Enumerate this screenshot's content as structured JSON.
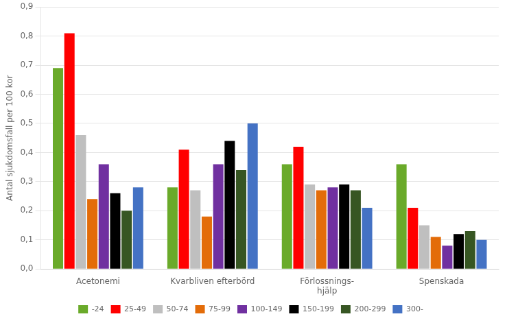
{
  "chart_data": {
    "type": "bar",
    "categories": [
      "Acetonemi",
      "Kvarbliven efterbörd",
      "Förlossnings-\nhjälp",
      "Spenskada"
    ],
    "series": [
      {
        "name": "-24",
        "color": "#6aaa2a",
        "values": [
          0.69,
          0.28,
          0.36,
          0.36
        ]
      },
      {
        "name": "25-49",
        "color": "#ff0000",
        "values": [
          0.81,
          0.41,
          0.42,
          0.21
        ]
      },
      {
        "name": "50-74",
        "color": "#bfbfbf",
        "values": [
          0.46,
          0.27,
          0.29,
          0.15
        ]
      },
      {
        "name": "75-99",
        "color": "#e36c09",
        "values": [
          0.24,
          0.18,
          0.27,
          0.11
        ]
      },
      {
        "name": "100-149",
        "color": "#7030a0",
        "values": [
          0.36,
          0.36,
          0.28,
          0.08
        ]
      },
      {
        "name": "150-199",
        "color": "#000000",
        "values": [
          0.26,
          0.44,
          0.29,
          0.12
        ]
      },
      {
        "name": "200-299",
        "color": "#375623",
        "values": [
          0.2,
          0.34,
          0.27,
          0.13
        ]
      },
      {
        "name": "300-",
        "color": "#4472c4",
        "values": [
          0.28,
          0.5,
          0.21,
          0.1
        ]
      }
    ],
    "ylabel": "Antal sjukdomsfall per 100 kor",
    "ylim": [
      0,
      0.9
    ],
    "yticks": [
      {
        "value": 0,
        "label": "0,0"
      },
      {
        "value": 0.1,
        "label": "0,1"
      },
      {
        "value": 0.2,
        "label": "0,2"
      },
      {
        "value": 0.3,
        "label": "0,3"
      },
      {
        "value": 0.4,
        "label": "0,4"
      },
      {
        "value": 0.5,
        "label": "0,5"
      },
      {
        "value": 0.6,
        "label": "0,6"
      },
      {
        "value": 0.7,
        "label": "0,7"
      },
      {
        "value": 0.8,
        "label": "0,8"
      },
      {
        "value": 0.9,
        "label": "0,9"
      }
    ],
    "grid": true,
    "legend": "bottom"
  }
}
